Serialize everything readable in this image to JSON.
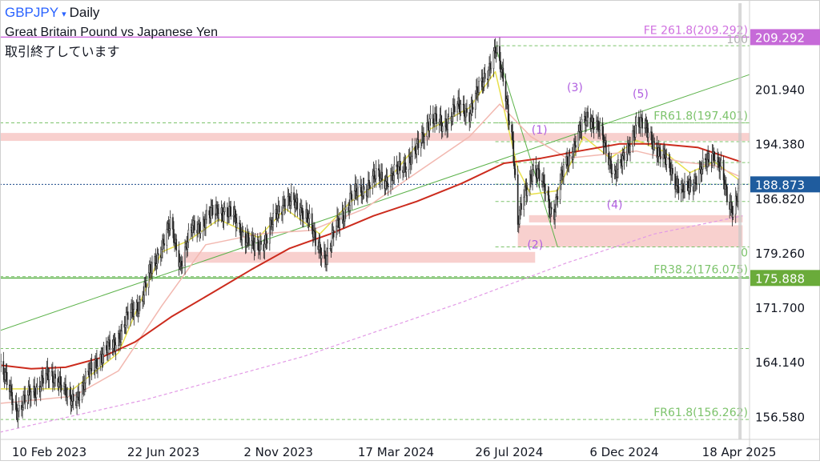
{
  "header": {
    "symbol": "GBPJPY",
    "caret": "▾",
    "interval": "Daily",
    "instrument_name": "Great Britain Pound vs Japanese Yen",
    "market_status": "取引終了しています"
  },
  "colors": {
    "candle": "#222222",
    "ma_short": "#e8e04a",
    "ma_mid": "#f2b8b0",
    "ma_long": "#cc2b1d",
    "ma_extra": "#e29ae6",
    "trendline": "#5cb24a",
    "fib_dashed": "#7cc36b",
    "fe_line": "#d070e0",
    "zone": "#f3b0ae",
    "wave_label": "#b05ee0",
    "current_price_line": "#1a4a8a",
    "axis_text": "#131722",
    "label_blue_bg": "#1f5c9e",
    "label_green_bg": "#6aab3a",
    "label_purple_bg": "#c66ad8"
  },
  "chart_data": {
    "type": "candlestick",
    "title": "",
    "x_axis": {
      "type": "date",
      "range": [
        "2022-12-15",
        "2025-04-30"
      ],
      "tick_labels": [
        {
          "date": "2023-02-10",
          "label": "10 Feb 2023"
        },
        {
          "date": "2023-06-22",
          "label": "22 Jun 2023"
        },
        {
          "date": "2023-11-02",
          "label": "2 Nov 2023"
        },
        {
          "date": "2024-03-17",
          "label": "17 Mar 2024"
        },
        {
          "date": "2024-07-26",
          "label": "26 Jul 2024"
        },
        {
          "date": "2024-12-06",
          "label": "6 Dec 2024"
        },
        {
          "date": "2025-04-18",
          "label": "18 Apr 2025"
        }
      ]
    },
    "y_axis": {
      "range": [
        153.5,
        214.0
      ],
      "position": "right",
      "ticks": [
        {
          "value": 201.94,
          "label": "201.940"
        },
        {
          "value": 194.38,
          "label": "194.380"
        },
        {
          "value": 186.82,
          "label": "186.820"
        },
        {
          "value": 179.26,
          "label": "179.260"
        },
        {
          "value": 171.7,
          "label": "171.700"
        },
        {
          "value": 164.14,
          "label": "164.140"
        },
        {
          "value": 156.58,
          "label": "156.580"
        }
      ]
    },
    "price_labels": [
      {
        "value": 209.292,
        "label": "209.292",
        "role": "fe"
      },
      {
        "value": 188.873,
        "label": "188.873",
        "role": "current"
      },
      {
        "value": 175.888,
        "label": "175.888",
        "role": "level"
      }
    ],
    "current_price": 188.873,
    "level_line": 175.888,
    "fib_levels": [
      {
        "label": "FE 261.8(209.292)",
        "value": 209.292,
        "style": "solid"
      },
      {
        "label": "FR61.8(197.401)",
        "value": 197.401,
        "style": "dashed"
      },
      {
        "label": "FR38.2(176.075)",
        "value": 176.075,
        "style": "dashed"
      },
      {
        "label": "FR61.8(156.262)",
        "value": 156.262,
        "style": "dashed"
      }
    ],
    "fib_retracement": {
      "top": {
        "date": "2024-07-10",
        "value": 208.1,
        "label": "100"
      },
      "bottom": {
        "date": "2024-08-05",
        "value": 180.2,
        "label": "0"
      },
      "levels": [
        208.1,
        197.401,
        194.8,
        191.9,
        188.9,
        186.5,
        180.2
      ]
    },
    "extra_dashed_levels": [
      166.1
    ],
    "zones": [
      {
        "from": "2022-12-15",
        "to": "2025-04-30",
        "low": 194.9,
        "high": 196.0
      },
      {
        "from": "2023-07-15",
        "to": "2024-08-25",
        "low": 178.0,
        "high": 179.5
      },
      {
        "from": "2024-08-05",
        "to": "2025-04-22",
        "low": 180.2,
        "high": 183.2
      },
      {
        "from": "2024-08-18",
        "to": "2025-04-22",
        "low": 183.6,
        "high": 184.6
      }
    ],
    "trendlines": [
      {
        "from": {
          "date": "2022-12-15",
          "value": 168.6
        },
        "to": {
          "date": "2025-04-30",
          "value": 204.1
        }
      },
      {
        "from": {
          "date": "2024-07-10",
          "value": 208.1
        },
        "to": {
          "date": "2024-09-20",
          "value": 180.2
        }
      }
    ],
    "wave_labels": [
      {
        "label": "(1)",
        "date": "2024-08-30",
        "value": 195.9
      },
      {
        "label": "(2)",
        "date": "2024-08-25",
        "value": 180.0
      },
      {
        "label": "(3)",
        "date": "2024-10-10",
        "value": 201.8
      },
      {
        "label": "(4)",
        "date": "2024-11-25",
        "value": 185.5
      },
      {
        "label": "(5)",
        "date": "2024-12-25",
        "value": 200.9
      }
    ],
    "ohlc_anchors": [
      [
        "2022-12-15",
        163.5
      ],
      [
        "2023-01-05",
        157.5
      ],
      [
        "2023-01-20",
        160.0
      ],
      [
        "2023-02-05",
        162.0
      ],
      [
        "2023-02-20",
        162.3
      ],
      [
        "2023-03-05",
        158.5
      ],
      [
        "2023-03-20",
        160.5
      ],
      [
        "2023-04-05",
        164.5
      ],
      [
        "2023-04-25",
        166.5
      ],
      [
        "2023-05-10",
        170.0
      ],
      [
        "2023-05-25",
        172.5
      ],
      [
        "2023-06-05",
        176.0
      ],
      [
        "2023-06-20",
        180.5
      ],
      [
        "2023-06-30",
        183.0
      ],
      [
        "2023-07-12",
        178.0
      ],
      [
        "2023-07-25",
        182.5
      ],
      [
        "2023-08-10",
        184.0
      ],
      [
        "2023-08-25",
        185.5
      ],
      [
        "2023-09-10",
        184.5
      ],
      [
        "2023-09-25",
        181.5
      ],
      [
        "2023-10-05",
        180.0
      ],
      [
        "2023-10-20",
        181.5
      ],
      [
        "2023-10-30",
        184.5
      ],
      [
        "2023-11-10",
        187.0
      ],
      [
        "2023-11-20",
        186.0
      ],
      [
        "2023-12-05",
        185.0
      ],
      [
        "2023-12-15",
        180.5
      ],
      [
        "2023-12-28",
        179.0
      ],
      [
        "2024-01-10",
        183.5
      ],
      [
        "2024-01-25",
        187.0
      ],
      [
        "2024-02-10",
        188.5
      ],
      [
        "2024-02-25",
        190.0
      ],
      [
        "2024-03-10",
        189.5
      ],
      [
        "2024-03-25",
        191.5
      ],
      [
        "2024-04-10",
        193.5
      ],
      [
        "2024-04-25",
        198.0
      ],
      [
        "2024-05-10",
        197.0
      ],
      [
        "2024-05-25",
        199.5
      ],
      [
        "2024-06-10",
        199.0
      ],
      [
        "2024-06-25",
        203.0
      ],
      [
        "2024-07-10",
        207.5
      ],
      [
        "2024-07-20",
        203.0
      ],
      [
        "2024-07-30",
        195.0
      ],
      [
        "2024-08-05",
        183.0
      ],
      [
        "2024-08-12",
        187.5
      ],
      [
        "2024-08-22",
        191.0
      ],
      [
        "2024-09-05",
        188.5
      ],
      [
        "2024-09-15",
        184.5
      ],
      [
        "2024-09-28",
        191.5
      ],
      [
        "2024-10-10",
        194.5
      ],
      [
        "2024-10-25",
        198.5
      ],
      [
        "2024-11-05",
        197.0
      ],
      [
        "2024-11-15",
        193.5
      ],
      [
        "2024-11-25",
        190.5
      ],
      [
        "2024-12-05",
        192.0
      ],
      [
        "2024-12-20",
        197.5
      ],
      [
        "2025-01-05",
        196.0
      ],
      [
        "2025-01-15",
        193.0
      ],
      [
        "2025-01-28",
        191.5
      ],
      [
        "2025-02-10",
        187.5
      ],
      [
        "2025-02-25",
        189.5
      ],
      [
        "2025-03-10",
        191.5
      ],
      [
        "2025-03-20",
        193.5
      ],
      [
        "2025-03-28",
        191.0
      ],
      [
        "2025-04-05",
        186.0
      ],
      [
        "2025-04-11",
        185.5
      ],
      [
        "2025-04-18",
        188.873
      ]
    ],
    "moving_averages": [
      {
        "role": "short",
        "anchors": [
          [
            "2022-12-15",
            160.5
          ],
          [
            "2023-03-10",
            160.5
          ],
          [
            "2023-05-01",
            165.5
          ],
          [
            "2023-06-20",
            179.5
          ],
          [
            "2023-07-20",
            181.0
          ],
          [
            "2023-08-25",
            184.0
          ],
          [
            "2023-10-10",
            181.5
          ],
          [
            "2023-11-10",
            185.5
          ],
          [
            "2023-12-20",
            182.0
          ],
          [
            "2024-01-25",
            186.5
          ],
          [
            "2024-03-15",
            190.5
          ],
          [
            "2024-04-25",
            196.5
          ],
          [
            "2024-06-10",
            199.5
          ],
          [
            "2024-07-10",
            204.5
          ],
          [
            "2024-08-05",
            191.0
          ],
          [
            "2024-08-20",
            187.5
          ],
          [
            "2024-09-20",
            188.0
          ],
          [
            "2024-10-20",
            195.5
          ],
          [
            "2024-11-20",
            192.5
          ],
          [
            "2024-12-20",
            195.0
          ],
          [
            "2025-01-20",
            193.5
          ],
          [
            "2025-02-20",
            190.5
          ],
          [
            "2025-03-20",
            192.0
          ],
          [
            "2025-04-18",
            189.5
          ]
        ]
      },
      {
        "role": "mid",
        "anchors": [
          [
            "2022-12-15",
            158.5
          ],
          [
            "2023-03-10",
            159.5
          ],
          [
            "2023-05-01",
            163.0
          ],
          [
            "2023-06-20",
            172.0
          ],
          [
            "2023-08-10",
            180.5
          ],
          [
            "2023-10-10",
            182.0
          ],
          [
            "2023-12-10",
            182.5
          ],
          [
            "2024-02-10",
            185.5
          ],
          [
            "2024-04-10",
            190.5
          ],
          [
            "2024-06-10",
            195.5
          ],
          [
            "2024-07-15",
            200.0
          ],
          [
            "2024-08-20",
            195.5
          ],
          [
            "2024-10-01",
            192.5
          ],
          [
            "2024-11-10",
            193.0
          ],
          [
            "2024-12-20",
            193.5
          ],
          [
            "2025-02-10",
            192.0
          ],
          [
            "2025-03-20",
            191.5
          ],
          [
            "2025-04-18",
            190.0
          ]
        ]
      },
      {
        "role": "long",
        "anchors": [
          [
            "2022-12-15",
            163.8
          ],
          [
            "2023-01-20",
            163.3
          ],
          [
            "2023-03-01",
            163.5
          ],
          [
            "2023-04-10",
            164.8
          ],
          [
            "2023-05-20",
            167.0
          ],
          [
            "2023-07-01",
            170.5
          ],
          [
            "2023-08-20",
            174.0
          ],
          [
            "2023-10-01",
            177.0
          ],
          [
            "2023-11-15",
            180.0
          ],
          [
            "2024-01-01",
            182.0
          ],
          [
            "2024-02-20",
            184.5
          ],
          [
            "2024-04-10",
            186.5
          ],
          [
            "2024-06-01",
            189.0
          ],
          [
            "2024-07-20",
            191.8
          ],
          [
            "2024-09-01",
            192.5
          ],
          [
            "2024-10-15",
            193.5
          ],
          [
            "2024-12-01",
            194.5
          ],
          [
            "2025-01-15",
            194.5
          ],
          [
            "2025-03-01",
            194.0
          ],
          [
            "2025-04-20",
            192.0
          ]
        ]
      },
      {
        "role": "extra",
        "anchors": [
          [
            "2022-12-15",
            154.5
          ],
          [
            "2023-06-01",
            159.0
          ],
          [
            "2023-12-01",
            165.0
          ],
          [
            "2024-06-01",
            172.5
          ],
          [
            "2024-10-01",
            178.0
          ],
          [
            "2025-01-10",
            182.0
          ],
          [
            "2025-04-22",
            184.5
          ]
        ]
      }
    ]
  }
}
